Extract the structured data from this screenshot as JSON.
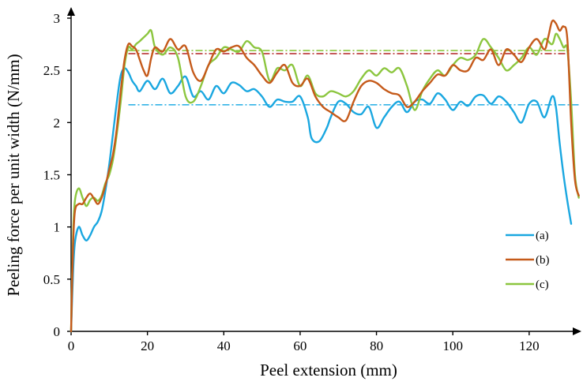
{
  "chart_data": {
    "type": "line",
    "xlabel": "Peel extension (mm)",
    "ylabel": "Peeling force per unit width (N/mm)",
    "xlim": [
      0,
      135
    ],
    "ylim": [
      0,
      3
    ],
    "xticks": [
      0,
      20,
      40,
      60,
      80,
      100,
      120
    ],
    "yticks": [
      0,
      0.5,
      1,
      1.5,
      2,
      2.5,
      3
    ],
    "ytick_labels": [
      "0",
      "0.5",
      "1",
      "1.5",
      "2",
      "2.5",
      "3"
    ],
    "legend_position": "right",
    "grid": false,
    "series": [
      {
        "name": "(a)",
        "color": "#1aa7e0",
        "x": [
          0,
          0.5,
          1,
          2,
          3,
          4,
          5,
          6,
          7,
          8,
          9,
          10,
          11,
          12,
          13,
          14,
          15,
          16,
          17,
          18,
          20,
          22,
          24,
          26,
          28,
          30,
          32,
          34,
          36,
          38,
          40,
          42,
          44,
          46,
          48,
          50,
          52,
          54,
          56,
          58,
          60,
          62,
          63,
          65,
          67,
          68,
          70,
          72,
          74,
          76,
          78,
          80,
          82,
          84,
          86,
          88,
          90,
          92,
          94,
          96,
          98,
          100,
          102,
          104,
          106,
          108,
          110,
          112,
          114,
          116,
          118,
          120,
          122,
          124,
          126,
          127,
          128,
          129,
          130,
          131
        ],
        "y": [
          0,
          0.55,
          0.85,
          1.0,
          0.92,
          0.87,
          0.92,
          1.0,
          1.05,
          1.15,
          1.35,
          1.6,
          1.9,
          2.2,
          2.45,
          2.52,
          2.48,
          2.4,
          2.35,
          2.3,
          2.4,
          2.32,
          2.42,
          2.28,
          2.35,
          2.44,
          2.25,
          2.3,
          2.22,
          2.35,
          2.28,
          2.38,
          2.36,
          2.3,
          2.32,
          2.25,
          2.15,
          2.22,
          2.2,
          2.2,
          2.25,
          2.05,
          1.85,
          1.82,
          1.95,
          2.05,
          2.2,
          2.18,
          2.1,
          2.08,
          2.15,
          1.95,
          2.05,
          2.15,
          2.2,
          2.1,
          2.2,
          2.22,
          2.18,
          2.28,
          2.22,
          2.12,
          2.2,
          2.16,
          2.25,
          2.26,
          2.18,
          2.25,
          2.2,
          2.1,
          2.0,
          2.18,
          2.2,
          2.05,
          2.25,
          2.15,
          1.8,
          1.5,
          1.25,
          1.03
        ]
      },
      {
        "name": "(b)",
        "color": "#c55a1a",
        "x": [
          0,
          0.5,
          1,
          2,
          3,
          4,
          5,
          6,
          7,
          8,
          9,
          10,
          11,
          12,
          13,
          14,
          15,
          16,
          17,
          18,
          19,
          20,
          21,
          22,
          24,
          26,
          28,
          30,
          32,
          34,
          36,
          38,
          40,
          42,
          44,
          46,
          48,
          50,
          52,
          54,
          56,
          58,
          60,
          62,
          64,
          66,
          68,
          70,
          72,
          74,
          76,
          78,
          80,
          82,
          84,
          86,
          88,
          90,
          92,
          94,
          96,
          98,
          100,
          102,
          104,
          106,
          108,
          110,
          112,
          114,
          116,
          118,
          120,
          122,
          124,
          125,
          126,
          127,
          128,
          129,
          130,
          131,
          132,
          133
        ],
        "y": [
          0,
          0.8,
          1.15,
          1.22,
          1.22,
          1.28,
          1.32,
          1.27,
          1.22,
          1.28,
          1.4,
          1.55,
          1.7,
          1.95,
          2.3,
          2.6,
          2.75,
          2.73,
          2.7,
          2.6,
          2.5,
          2.45,
          2.62,
          2.72,
          2.68,
          2.8,
          2.7,
          2.73,
          2.48,
          2.4,
          2.55,
          2.7,
          2.68,
          2.72,
          2.73,
          2.62,
          2.55,
          2.45,
          2.38,
          2.48,
          2.55,
          2.38,
          2.35,
          2.42,
          2.25,
          2.15,
          2.1,
          2.05,
          2.02,
          2.2,
          2.35,
          2.4,
          2.38,
          2.32,
          2.28,
          2.26,
          2.15,
          2.2,
          2.3,
          2.38,
          2.46,
          2.45,
          2.55,
          2.5,
          2.5,
          2.62,
          2.6,
          2.7,
          2.55,
          2.7,
          2.65,
          2.58,
          2.72,
          2.8,
          2.7,
          2.82,
          2.97,
          2.95,
          2.88,
          2.92,
          2.8,
          2.0,
          1.45,
          1.3
        ]
      },
      {
        "name": "(c)",
        "color": "#8cc63f",
        "x": [
          0,
          0.5,
          1,
          2,
          3,
          4,
          5,
          6,
          7,
          8,
          9,
          10,
          11,
          12,
          13,
          14,
          15,
          16,
          17,
          18,
          20,
          21,
          22,
          24,
          26,
          28,
          30,
          32,
          34,
          36,
          38,
          40,
          42,
          44,
          46,
          48,
          50,
          52,
          54,
          56,
          58,
          60,
          62,
          64,
          66,
          68,
          70,
          72,
          74,
          76,
          78,
          80,
          82,
          84,
          86,
          88,
          90,
          92,
          94,
          96,
          98,
          100,
          102,
          104,
          106,
          108,
          110,
          112,
          114,
          116,
          118,
          120,
          122,
          124,
          126,
          127,
          128,
          129,
          130,
          131,
          132,
          133
        ],
        "y": [
          0,
          0.9,
          1.25,
          1.37,
          1.28,
          1.2,
          1.26,
          1.28,
          1.25,
          1.3,
          1.42,
          1.5,
          1.65,
          1.9,
          2.2,
          2.55,
          2.72,
          2.7,
          2.75,
          2.78,
          2.85,
          2.88,
          2.72,
          2.65,
          2.72,
          2.62,
          2.25,
          2.2,
          2.35,
          2.55,
          2.62,
          2.72,
          2.7,
          2.68,
          2.78,
          2.72,
          2.68,
          2.4,
          2.52,
          2.5,
          2.55,
          2.35,
          2.45,
          2.28,
          2.25,
          2.3,
          2.28,
          2.25,
          2.3,
          2.42,
          2.5,
          2.45,
          2.52,
          2.48,
          2.52,
          2.35,
          2.12,
          2.3,
          2.42,
          2.5,
          2.45,
          2.55,
          2.62,
          2.6,
          2.65,
          2.8,
          2.72,
          2.62,
          2.5,
          2.55,
          2.62,
          2.72,
          2.65,
          2.8,
          2.75,
          2.85,
          2.8,
          2.72,
          2.7,
          2.2,
          1.5,
          1.28
        ]
      }
    ],
    "reference_lines": [
      {
        "series": "(a)",
        "y": 2.17,
        "x_start": 15,
        "x_end": 133,
        "color": "#33b3e6"
      },
      {
        "series": "(b)",
        "y": 2.66,
        "x_start": 15,
        "x_end": 131,
        "color": "#b22222"
      },
      {
        "series": "(c)",
        "y": 2.69,
        "x_start": 15,
        "x_end": 131,
        "color": "#8cc63f"
      }
    ]
  }
}
